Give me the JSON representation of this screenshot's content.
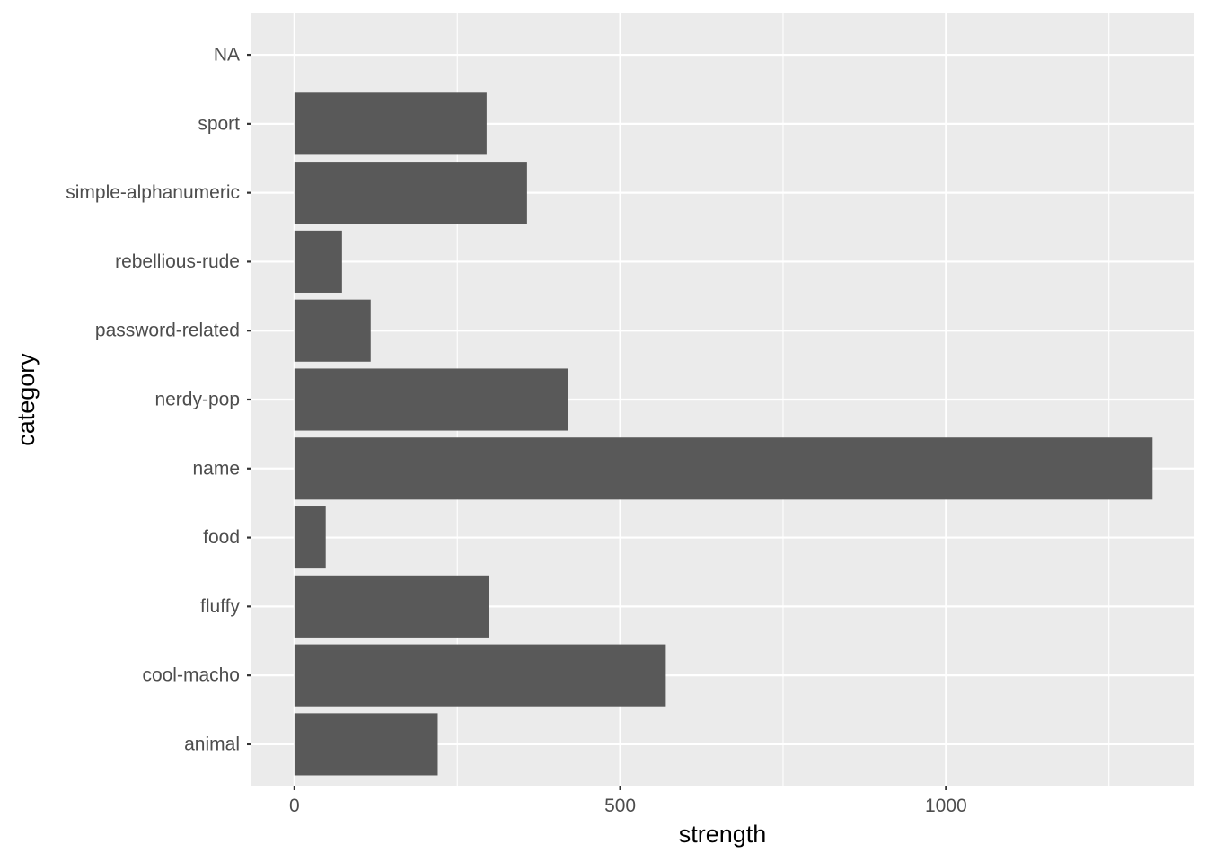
{
  "chart_data": {
    "type": "bar",
    "orientation": "horizontal",
    "categories": [
      "animal",
      "cool-macho",
      "fluffy",
      "food",
      "name",
      "nerdy-pop",
      "password-related",
      "rebellious-rude",
      "simple-alphanumeric",
      "sport",
      "NA"
    ],
    "values": [
      220,
      570,
      298,
      48,
      1317,
      420,
      117,
      73,
      357,
      295,
      null
    ],
    "xlabel": "strength",
    "ylabel": "category",
    "xlim": [
      -66,
      1380
    ],
    "x_ticks": [
      0,
      500,
      1000
    ],
    "x_tick_labels": [
      "0",
      "500",
      "1000"
    ],
    "x_minor_ticks": [
      250,
      750,
      1250
    ],
    "grid": true,
    "colors": {
      "panel": "#EBEBEB",
      "bar": "#595959",
      "grid": "#FFFFFF",
      "tick_label": "#4D4D4D",
      "axis_title": "#000000"
    }
  }
}
